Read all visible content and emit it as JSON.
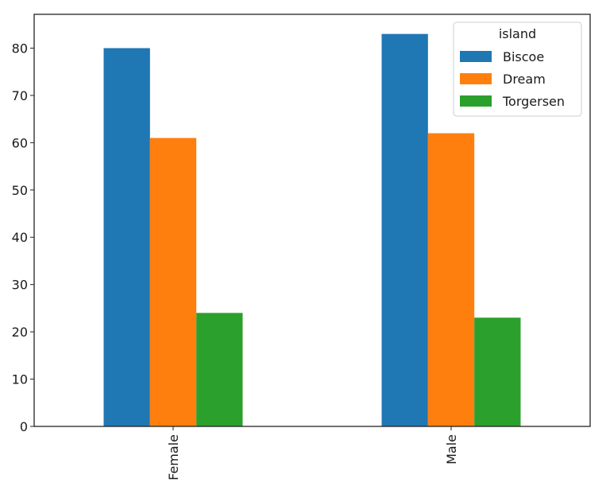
{
  "chart_data": {
    "type": "bar",
    "categories": [
      "Female",
      "Male"
    ],
    "series": [
      {
        "name": "Biscoe",
        "values": [
          80,
          83
        ],
        "color": "#1f77b4"
      },
      {
        "name": "Dream",
        "values": [
          61,
          62
        ],
        "color": "#ff7f0e"
      },
      {
        "name": "Torgersen",
        "values": [
          24,
          23
        ],
        "color": "#2ca02c"
      }
    ],
    "legend_title": "island",
    "legend_position": "top-right",
    "xlabel": "",
    "ylabel": "",
    "ylim": [
      0,
      87.15
    ],
    "yticks": [
      0,
      10,
      20,
      30,
      40,
      50,
      60,
      70,
      80
    ],
    "grid": false
  }
}
